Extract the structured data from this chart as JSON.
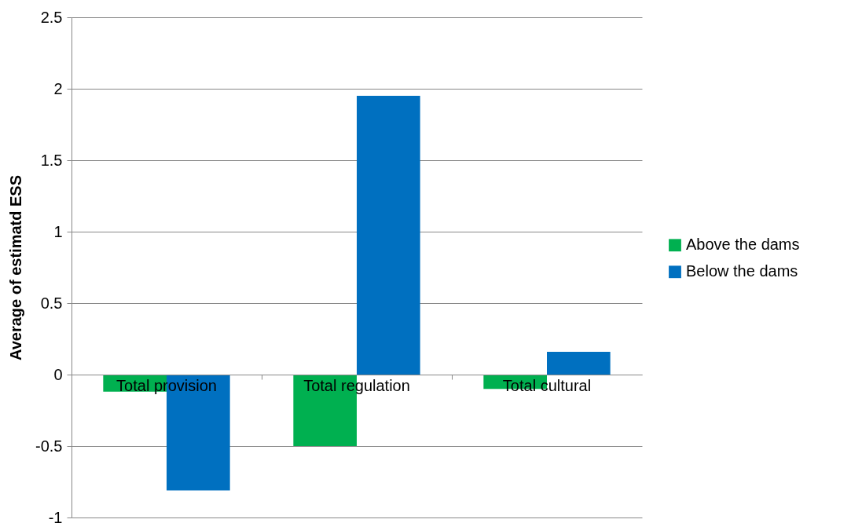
{
  "chart_data": {
    "type": "bar",
    "ylabel": "Average of estimatd ESS",
    "categories": [
      "Total provision",
      "Total regulation",
      "Total cultural"
    ],
    "series": [
      {
        "name": "Above the dams",
        "color": "#00b050",
        "values": [
          -0.12,
          -0.5,
          -0.1
        ]
      },
      {
        "name": "Below the dams",
        "color": "#0070c0",
        "values": [
          -0.81,
          1.95,
          0.16
        ]
      }
    ],
    "ylim": [
      -1,
      2.5
    ],
    "yticks": [
      -1,
      -0.5,
      0,
      0.5,
      1,
      1.5,
      2,
      2.5
    ],
    "grid": "y",
    "legend": "right"
  }
}
